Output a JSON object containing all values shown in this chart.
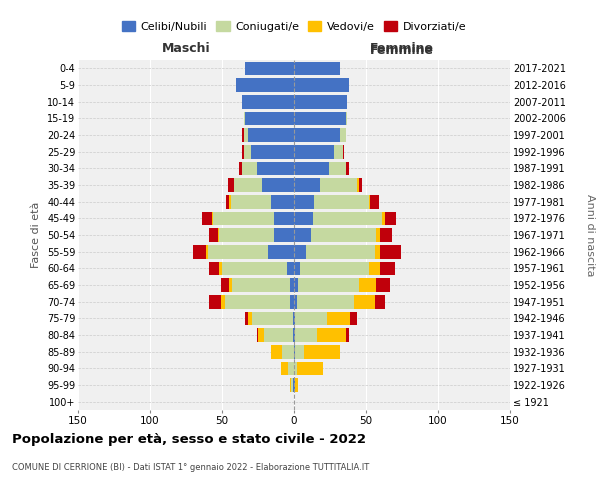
{
  "age_groups": [
    "100+",
    "95-99",
    "90-94",
    "85-89",
    "80-84",
    "75-79",
    "70-74",
    "65-69",
    "60-64",
    "55-59",
    "50-54",
    "45-49",
    "40-44",
    "35-39",
    "30-34",
    "25-29",
    "20-24",
    "15-19",
    "10-14",
    "5-9",
    "0-4"
  ],
  "birth_years": [
    "≤ 1921",
    "1922-1926",
    "1927-1931",
    "1932-1936",
    "1937-1941",
    "1942-1946",
    "1947-1951",
    "1952-1956",
    "1957-1961",
    "1962-1966",
    "1967-1971",
    "1972-1976",
    "1977-1981",
    "1982-1986",
    "1987-1991",
    "1992-1996",
    "1997-2001",
    "2002-2006",
    "2007-2011",
    "2012-2016",
    "2017-2021"
  ],
  "males": {
    "celibi": [
      0,
      1,
      0,
      0,
      1,
      1,
      3,
      3,
      5,
      18,
      14,
      14,
      16,
      22,
      26,
      30,
      32,
      34,
      36,
      40,
      34
    ],
    "coniugati": [
      0,
      1,
      4,
      8,
      20,
      28,
      45,
      40,
      45,
      42,
      38,
      42,
      28,
      20,
      10,
      5,
      3,
      1,
      0,
      0,
      0
    ],
    "vedovi": [
      0,
      1,
      5,
      8,
      4,
      3,
      3,
      2,
      2,
      1,
      1,
      1,
      1,
      0,
      0,
      0,
      0,
      0,
      0,
      0,
      0
    ],
    "divorziati": [
      0,
      0,
      0,
      0,
      1,
      2,
      8,
      6,
      7,
      9,
      6,
      7,
      2,
      4,
      2,
      1,
      1,
      0,
      0,
      0,
      0
    ]
  },
  "females": {
    "nubili": [
      0,
      1,
      0,
      1,
      1,
      1,
      2,
      3,
      4,
      8,
      12,
      13,
      14,
      18,
      24,
      28,
      32,
      36,
      37,
      38,
      32
    ],
    "coniugate": [
      0,
      0,
      2,
      6,
      15,
      22,
      40,
      42,
      48,
      48,
      45,
      48,
      38,
      26,
      12,
      6,
      4,
      1,
      0,
      0,
      0
    ],
    "vedove": [
      0,
      2,
      18,
      25,
      20,
      16,
      14,
      12,
      8,
      4,
      3,
      2,
      1,
      1,
      0,
      0,
      0,
      0,
      0,
      0,
      0
    ],
    "divorziate": [
      0,
      0,
      0,
      0,
      2,
      5,
      7,
      10,
      10,
      14,
      8,
      8,
      6,
      2,
      2,
      1,
      0,
      0,
      0,
      0,
      0
    ]
  },
  "colors": {
    "celibi": "#4472c4",
    "coniugati": "#c5d9a0",
    "vedovi": "#ffc000",
    "divorziati": "#c0000b"
  },
  "xlim": 150,
  "title": "Popolazione per età, sesso e stato civile - 2022",
  "subtitle": "COMUNE DI CERRIONE (BI) - Dati ISTAT 1° gennaio 2022 - Elaborazione TUTTITALIA.IT",
  "ylabel_left": "Fasce di età",
  "ylabel_right": "Anni di nascita",
  "xlabel_left": "Maschi",
  "xlabel_right": "Femmine",
  "legend_labels": [
    "Celibi/Nubili",
    "Coniugati/e",
    "Vedovi/e",
    "Divorziati/e"
  ],
  "bg_color": "#f0f0f0"
}
